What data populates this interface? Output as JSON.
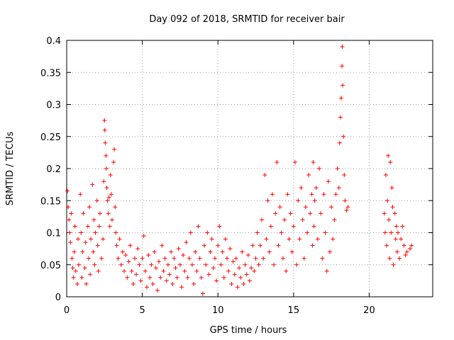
{
  "chart_data": {
    "type": "scatter",
    "title": "Day 092 of 2018, SRMTID for receiver bair",
    "xlabel": "GPS time / hours",
    "ylabel": "SRMTID / TECUs",
    "xlim": [
      0,
      24.2
    ],
    "ylim": [
      0,
      0.4
    ],
    "grid": true,
    "marker": "+",
    "xticks": [
      0,
      5,
      10,
      15,
      20
    ],
    "xtick_labels": [
      "0",
      "5",
      "10",
      "15",
      "20"
    ],
    "yticks": [
      0,
      0.05,
      0.1,
      0.15,
      0.2,
      0.25,
      0.3,
      0.35,
      0.4
    ],
    "ytick_labels": [
      "0",
      "0.05",
      "0.1",
      "0.15",
      "0.2",
      "0.25",
      "0.3",
      "0.35",
      "0.4"
    ],
    "series": [
      {
        "name": "SRMTID",
        "color": "#ff0000",
        "points": [
          [
            0.05,
            0.165
          ],
          [
            0.1,
            0.14
          ],
          [
            0.15,
            0.12
          ],
          [
            0.2,
            0.1
          ],
          [
            0.25,
            0.085
          ],
          [
            0.3,
            0.13
          ],
          [
            0.35,
            0.06
          ],
          [
            0.4,
            0.045
          ],
          [
            0.45,
            0.03
          ],
          [
            0.5,
            0.07
          ],
          [
            0.55,
            0.11
          ],
          [
            0.6,
            0.04
          ],
          [
            0.7,
            0.02
          ],
          [
            0.75,
            0.09
          ],
          [
            0.8,
            0.05
          ],
          [
            0.9,
            0.16
          ],
          [
            0.95,
            0.1
          ],
          [
            1.0,
            0.03
          ],
          [
            1.05,
            0.07
          ],
          [
            1.1,
            0.13
          ],
          [
            1.2,
            0.045
          ],
          [
            1.25,
            0.085
          ],
          [
            1.3,
            0.02
          ],
          [
            1.4,
            0.11
          ],
          [
            1.45,
            0.06
          ],
          [
            1.5,
            0.14
          ],
          [
            1.55,
            0.035
          ],
          [
            1.6,
            0.09
          ],
          [
            1.7,
            0.175
          ],
          [
            1.75,
            0.07
          ],
          [
            1.8,
            0.12
          ],
          [
            1.85,
            0.05
          ],
          [
            1.9,
            0.1
          ],
          [
            2.0,
            0.15
          ],
          [
            2.05,
            0.08
          ],
          [
            2.1,
            0.04
          ],
          [
            2.15,
            0.11
          ],
          [
            2.2,
            0.13
          ],
          [
            2.3,
            0.06
          ],
          [
            2.4,
            0.09
          ],
          [
            2.45,
            0.18
          ],
          [
            2.5,
            0.275
          ],
          [
            2.52,
            0.26
          ],
          [
            2.55,
            0.24
          ],
          [
            2.6,
            0.22
          ],
          [
            2.62,
            0.2
          ],
          [
            2.65,
            0.17
          ],
          [
            2.7,
            0.15
          ],
          [
            2.75,
            0.13
          ],
          [
            2.8,
            0.155
          ],
          [
            2.85,
            0.11
          ],
          [
            2.9,
            0.19
          ],
          [
            2.95,
            0.16
          ],
          [
            3.0,
            0.12
          ],
          [
            3.1,
            0.21
          ],
          [
            3.15,
            0.23
          ],
          [
            3.2,
            0.14
          ],
          [
            3.25,
            0.1
          ],
          [
            3.3,
            0.08
          ],
          [
            3.4,
            0.06
          ],
          [
            3.5,
            0.09
          ],
          [
            3.6,
            0.05
          ],
          [
            3.7,
            0.07
          ],
          [
            3.8,
            0.04
          ],
          [
            3.9,
            0.065
          ],
          [
            4.0,
            0.03
          ],
          [
            4.1,
            0.055
          ],
          [
            4.2,
            0.08
          ],
          [
            4.3,
            0.04
          ],
          [
            4.4,
            0.02
          ],
          [
            4.5,
            0.06
          ],
          [
            4.6,
            0.035
          ],
          [
            4.7,
            0.075
          ],
          [
            4.8,
            0.05
          ],
          [
            4.9,
            0.025
          ],
          [
            5.0,
            0.06
          ],
          [
            5.1,
            0.095
          ],
          [
            5.2,
            0.04
          ],
          [
            5.3,
            0.015
          ],
          [
            5.4,
            0.065
          ],
          [
            5.5,
            0.03
          ],
          [
            5.6,
            0.05
          ],
          [
            5.7,
            0.02
          ],
          [
            5.8,
            0.07
          ],
          [
            5.9,
            0.045
          ],
          [
            6.0,
            0.01
          ],
          [
            6.1,
            0.055
          ],
          [
            6.2,
            0.03
          ],
          [
            6.3,
            0.08
          ],
          [
            6.4,
            0.04
          ],
          [
            6.5,
            0.06
          ],
          [
            6.6,
            0.025
          ],
          [
            6.7,
            0.05
          ],
          [
            6.8,
            0.035
          ],
          [
            6.9,
            0.07
          ],
          [
            7.0,
            0.02
          ],
          [
            7.1,
            0.06
          ],
          [
            7.2,
            0.045
          ],
          [
            7.3,
            0.03
          ],
          [
            7.4,
            0.075
          ],
          [
            7.5,
            0.05
          ],
          [
            7.6,
            0.015
          ],
          [
            7.7,
            0.065
          ],
          [
            7.8,
            0.04
          ],
          [
            7.9,
            0.085
          ],
          [
            8.0,
            0.03
          ],
          [
            8.1,
            0.06
          ],
          [
            8.2,
            0.1
          ],
          [
            8.3,
            0.05
          ],
          [
            8.4,
            0.02
          ],
          [
            8.5,
            0.07
          ],
          [
            8.6,
            0.04
          ],
          [
            8.7,
            0.11
          ],
          [
            8.8,
            0.06
          ],
          [
            8.9,
            0.03
          ],
          [
            9.0,
            0.005
          ],
          [
            9.1,
            0.08
          ],
          [
            9.2,
            0.05
          ],
          [
            9.3,
            0.1
          ],
          [
            9.4,
            0.035
          ],
          [
            9.5,
            0.07
          ],
          [
            9.6,
            0.09
          ],
          [
            9.7,
            0.045
          ],
          [
            9.8,
            0.06
          ],
          [
            9.9,
            0.025
          ],
          [
            10.0,
            0.08
          ],
          [
            10.1,
            0.11
          ],
          [
            10.2,
            0.05
          ],
          [
            10.3,
            0.07
          ],
          [
            10.4,
            0.03
          ],
          [
            10.5,
            0.09
          ],
          [
            10.6,
            0.06
          ],
          [
            10.7,
            0.04
          ],
          [
            10.8,
            0.075
          ],
          [
            10.9,
            0.02
          ],
          [
            11.0,
            0.055
          ],
          [
            11.1,
            0.035
          ],
          [
            11.2,
            0.06
          ],
          [
            11.3,
            0.015
          ],
          [
            11.4,
            0.045
          ],
          [
            11.5,
            0.03
          ],
          [
            11.6,
            0.07
          ],
          [
            11.7,
            0.02
          ],
          [
            11.8,
            0.05
          ],
          [
            11.9,
            0.035
          ],
          [
            12.0,
            0.065
          ],
          [
            12.1,
            0.025
          ],
          [
            12.2,
            0.045
          ],
          [
            12.3,
            0.08
          ],
          [
            12.4,
            0.04
          ],
          [
            12.5,
            0.06
          ],
          [
            12.6,
            0.1
          ],
          [
            12.7,
            0.05
          ],
          [
            12.8,
            0.08
          ],
          [
            12.9,
            0.12
          ],
          [
            13.0,
            0.06
          ],
          [
            13.1,
            0.19
          ],
          [
            13.2,
            0.09
          ],
          [
            13.3,
            0.15
          ],
          [
            13.4,
            0.07
          ],
          [
            13.5,
            0.11
          ],
          [
            13.6,
            0.16
          ],
          [
            13.7,
            0.05
          ],
          [
            13.8,
            0.13
          ],
          [
            13.9,
            0.21
          ],
          [
            14.0,
            0.08
          ],
          [
            14.1,
            0.14
          ],
          [
            14.2,
            0.1
          ],
          [
            14.3,
            0.06
          ],
          [
            14.4,
            0.12
          ],
          [
            14.5,
            0.04
          ],
          [
            14.6,
            0.16
          ],
          [
            14.7,
            0.09
          ],
          [
            14.8,
            0.13
          ],
          [
            14.9,
            0.07
          ],
          [
            15.0,
            0.11
          ],
          [
            15.1,
            0.21
          ],
          [
            15.2,
            0.05
          ],
          [
            15.3,
            0.15
          ],
          [
            15.4,
            0.09
          ],
          [
            15.5,
            0.17
          ],
          [
            15.6,
            0.12
          ],
          [
            15.7,
            0.06
          ],
          [
            15.8,
            0.14
          ],
          [
            15.9,
            0.1
          ],
          [
            16.0,
            0.19
          ],
          [
            16.1,
            0.13
          ],
          [
            16.2,
            0.16
          ],
          [
            16.25,
            0.08
          ],
          [
            16.3,
            0.21
          ],
          [
            16.35,
            0.11
          ],
          [
            16.4,
            0.15
          ],
          [
            16.5,
            0.17
          ],
          [
            16.6,
            0.09
          ],
          [
            16.7,
            0.2
          ],
          [
            16.8,
            0.13
          ],
          [
            16.9,
            0.06
          ],
          [
            17.0,
            0.16
          ],
          [
            17.1,
            0.1
          ],
          [
            17.2,
            0.04
          ],
          [
            17.3,
            0.18
          ],
          [
            17.4,
            0.07
          ],
          [
            17.5,
            0.14
          ],
          [
            17.6,
            0.09
          ],
          [
            17.7,
            0.12
          ],
          [
            17.8,
            0.16
          ],
          [
            17.9,
            0.2
          ],
          [
            18.0,
            0.17
          ],
          [
            18.05,
            0.24
          ],
          [
            18.1,
            0.28
          ],
          [
            18.15,
            0.31
          ],
          [
            18.2,
            0.36
          ],
          [
            18.22,
            0.39
          ],
          [
            18.25,
            0.33
          ],
          [
            18.3,
            0.25
          ],
          [
            18.35,
            0.19
          ],
          [
            18.4,
            0.15
          ],
          [
            18.5,
            0.135
          ],
          [
            18.6,
            0.14
          ],
          [
            21.0,
            0.13
          ],
          [
            21.05,
            0.1
          ],
          [
            21.1,
            0.19
          ],
          [
            21.15,
            0.08
          ],
          [
            21.2,
            0.15
          ],
          [
            21.25,
            0.22
          ],
          [
            21.3,
            0.12
          ],
          [
            21.35,
            0.06
          ],
          [
            21.4,
            0.21
          ],
          [
            21.45,
            0.1
          ],
          [
            21.5,
            0.17
          ],
          [
            21.55,
            0.14
          ],
          [
            21.6,
            0.05
          ],
          [
            21.7,
            0.13
          ],
          [
            21.75,
            0.09
          ],
          [
            21.8,
            0.11
          ],
          [
            21.85,
            0.07
          ],
          [
            21.9,
            0.1
          ],
          [
            22.0,
            0.06
          ],
          [
            22.1,
            0.09
          ],
          [
            22.2,
            0.11
          ],
          [
            22.3,
            0.08
          ],
          [
            22.4,
            0.065
          ],
          [
            22.5,
            0.07
          ],
          [
            22.7,
            0.075
          ],
          [
            22.8,
            0.08
          ]
        ]
      }
    ]
  }
}
